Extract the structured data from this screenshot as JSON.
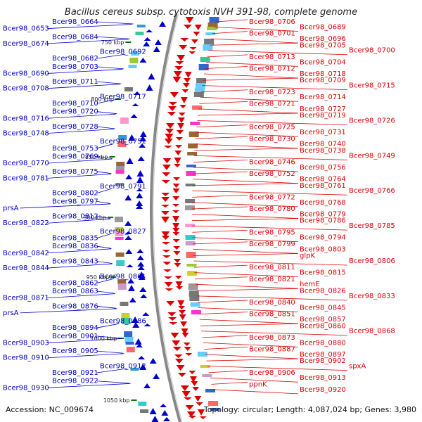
{
  "title": "Bacillus cereus subsp. cytotoxis NVH 391-98, complete genome",
  "footer": {
    "accession": "Accession: NC_009674",
    "summary": "Topology: circular; Length: 4,087,024 bp; Genes: 3,980"
  },
  "scale_labels": [
    "750 kbp",
    "800 kbp",
    "850 kbp",
    "900 kbp",
    "950 kbp",
    "1000 kbp",
    "1050 kbp"
  ],
  "reverse_strand_labels": [
    "Bcer98_0664",
    "Bcer98_0653",
    "Bcer98_0684",
    "Bcer98_0674",
    "Bcer98_0692",
    "Bcer98_0682",
    "Bcer98_0703",
    "Bcer98_0690",
    "Bcer98_0711",
    "Bcer98_0708",
    "Bcer98_0717",
    "Bcer98_0710",
    "Bcer98_0720",
    "Bcer98_0716",
    "Bcer98_0728",
    "Bcer98_0748",
    "Bcer98_0751",
    "Bcer98_0753",
    "Bcer98_0769",
    "Bcer98_0770",
    "Bcer98_0775",
    "Bcer98_0781",
    "Bcer98_0791",
    "Bcer98_0802",
    "Bcer98_0797",
    "prsA",
    "Bcer98_0812",
    "Bcer98_0822",
    "Bcer98_0827",
    "Bcer98_0835",
    "Bcer98_0836",
    "Bcer98_0842",
    "Bcer98_0843",
    "Bcer98_0844",
    "Bcer98_0861",
    "Bcer98_0862",
    "Bcer98_0863",
    "Bcer98_0871",
    "Bcer98_0876",
    "prsA",
    "Bcer98_0886",
    "Bcer98_0894",
    "Bcer98_0901",
    "Bcer98_0903",
    "Bcer98_0905",
    "Bcer98_0910",
    "Bcer98_0912",
    "Bcer98_0921",
    "Bcer98_0922",
    "Bcer98_0930"
  ],
  "forward_strand_labels": [
    "Bcer98_0706",
    "Bcer98_0689",
    "Bcer98_0701",
    "Bcer98_0696",
    "Bcer98_0705",
    "Bcer98_0700",
    "Bcer98_0713",
    "Bcer98_0704",
    "Bcer98_0712",
    "Bcer98_0718",
    "Bcer98_0709",
    "Bcer98_0715",
    "Bcer98_0723",
    "Bcer98_0714",
    "Bcer98_0721",
    "Bcer98_0727",
    "Bcer98_0719",
    "Bcer98_0726",
    "Bcer98_0725",
    "Bcer98_0731",
    "Bcer98_0730",
    "Bcer98_0740",
    "Bcer98_0738",
    "Bcer98_0749",
    "Bcer98_0746",
    "Bcer98_0756",
    "Bcer98_0752",
    "Bcer98_0764",
    "Bcer98_0761",
    "Bcer98_0766",
    "Bcer98_0772",
    "Bcer98_0768",
    "Bcer98_0780",
    "Bcer98_0779",
    "Bcer98_0786",
    "Bcer98_0785",
    "Bcer98_0795",
    "Bcer98_0794",
    "Bcer98_0799",
    "Bcer98_0803",
    "glpK",
    "Bcer98_0806",
    "Bcer98_0811",
    "Bcer98_0815",
    "Bcer98_0821",
    "hemE",
    "Bcer98_0826",
    "Bcer98_0833",
    "Bcer98_0840",
    "Bcer98_0845",
    "Bcer98_0851",
    "Bcer98_0857",
    "Bcer98_0860",
    "Bcer98_0868",
    "Bcer98_0873",
    "Bcer98_0880",
    "Bcer98_0887",
    "Bcer98_0897",
    "Bcer98_0902",
    "spxA",
    "Bcer98_0906",
    "Bcer98_0913",
    "ppnK",
    "Bcer98_0920"
  ],
  "colors": {
    "reverse": "#0000cc",
    "forward": "#dd0000",
    "backbone": "#888888",
    "tick": "#007700"
  }
}
